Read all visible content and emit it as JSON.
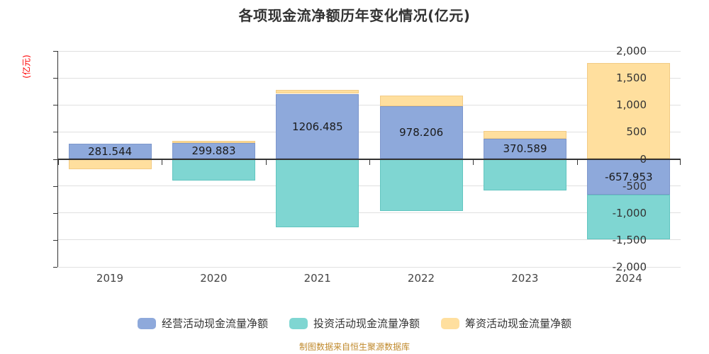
{
  "title": "各项现金流净额历年变化情况(亿元)",
  "y_axis_name": "(亿元)",
  "footer": "制图数据来自恒生聚源数据库",
  "colors": {
    "operating": "#8EA9DB",
    "operating_border": "#7D97CC",
    "investing": "#7FD6D2",
    "investing_border": "#62C5C0",
    "financing": "#FFDF9E",
    "financing_border": "#F2CB85",
    "grid": "#E0E0E0",
    "axis": "#333333",
    "axis_name_red": "#FF0000",
    "footer_gold": "#C08A2D",
    "title_text": "#333333"
  },
  "chart_data": {
    "type": "bar",
    "stacked": true,
    "grid": true,
    "legend_position": "bottom",
    "title": "各项现金流净额历年变化情况(亿元)",
    "ylabel": "(亿元)",
    "ylim": [
      -2000,
      2000
    ],
    "ytick_values": [
      2000,
      1500,
      1000,
      500,
      0,
      -500,
      -1000,
      -1500,
      -2000
    ],
    "ytick_labels": [
      "2,000",
      "1,500",
      "1,000",
      "500",
      "0",
      "-500",
      "-1,000",
      "-1,500",
      "-2,000"
    ],
    "categories": [
      "2019",
      "2020",
      "2021",
      "2022",
      "2023",
      "2024"
    ],
    "series": [
      {
        "name": "经营活动现金流量净额",
        "color": "#8EA9DB",
        "border": "#7D97CC",
        "labeled": true,
        "values": [
          281.544,
          299.883,
          1206.485,
          978.206,
          370.589,
          -657.953
        ]
      },
      {
        "name": "投资活动现金流量净额",
        "color": "#7FD6D2",
        "border": "#62C5C0",
        "labeled": false,
        "values": [
          0,
          -405,
          -1270,
          -960,
          -580,
          -830
        ]
      },
      {
        "name": "筹资活动现金流量净额",
        "color": "#FFDF9E",
        "border": "#F2CB85",
        "labeled": false,
        "values": [
          -195,
          30,
          70,
          200,
          150,
          1780
        ]
      }
    ],
    "data_labels": [
      "281.544",
      "299.883",
      "1206.485",
      "978.206",
      "370.589",
      "-657.953"
    ]
  }
}
